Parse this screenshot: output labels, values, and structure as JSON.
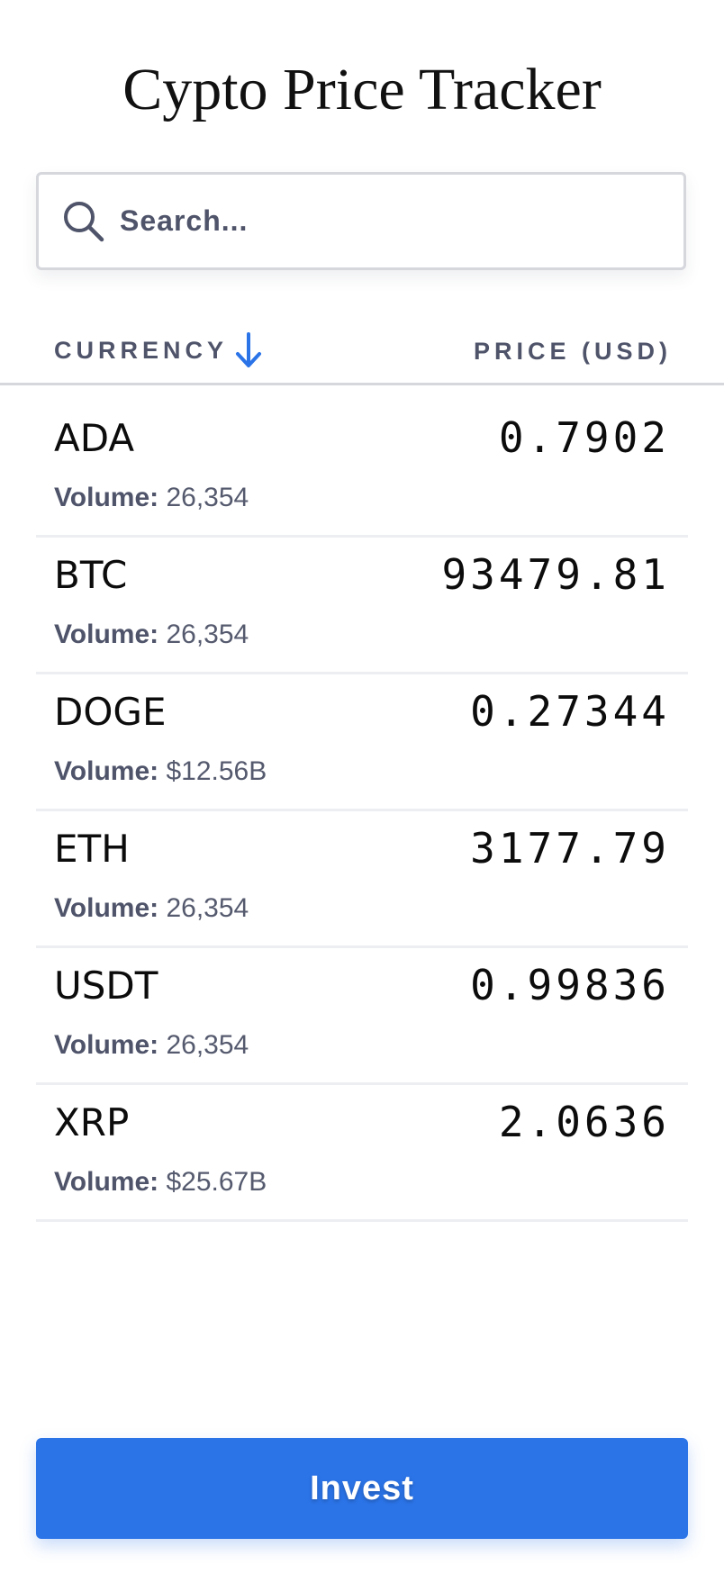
{
  "header": {
    "title": "Cypto Price Tracker"
  },
  "search": {
    "placeholder": "Search...",
    "value": "",
    "icon": "search-icon"
  },
  "table": {
    "columns": {
      "currency": "CURRENCY",
      "price": "PRICE (USD)"
    },
    "sort": {
      "column": "currency",
      "direction": "ascending",
      "icon": "arrow-down-icon"
    },
    "volume_label": "Volume:",
    "rows": [
      {
        "symbol": "ADA",
        "price": "0.7902",
        "volume": "26,354"
      },
      {
        "symbol": "BTC",
        "price": "93479.81",
        "volume": "26,354"
      },
      {
        "symbol": "DOGE",
        "price": "0.27344",
        "volume": "$12.56B"
      },
      {
        "symbol": "ETH",
        "price": "3177.79",
        "volume": "26,354"
      },
      {
        "symbol": "USDT",
        "price": "0.99836",
        "volume": "26,354"
      },
      {
        "symbol": "XRP",
        "price": "2.0636",
        "volume": "$25.67B"
      }
    ]
  },
  "actions": {
    "invest_label": "Invest"
  },
  "colors": {
    "accent": "#2b74e8",
    "muted_text": "#4f546a",
    "border": "#d5d7dd",
    "row_divider": "#eceef2"
  }
}
